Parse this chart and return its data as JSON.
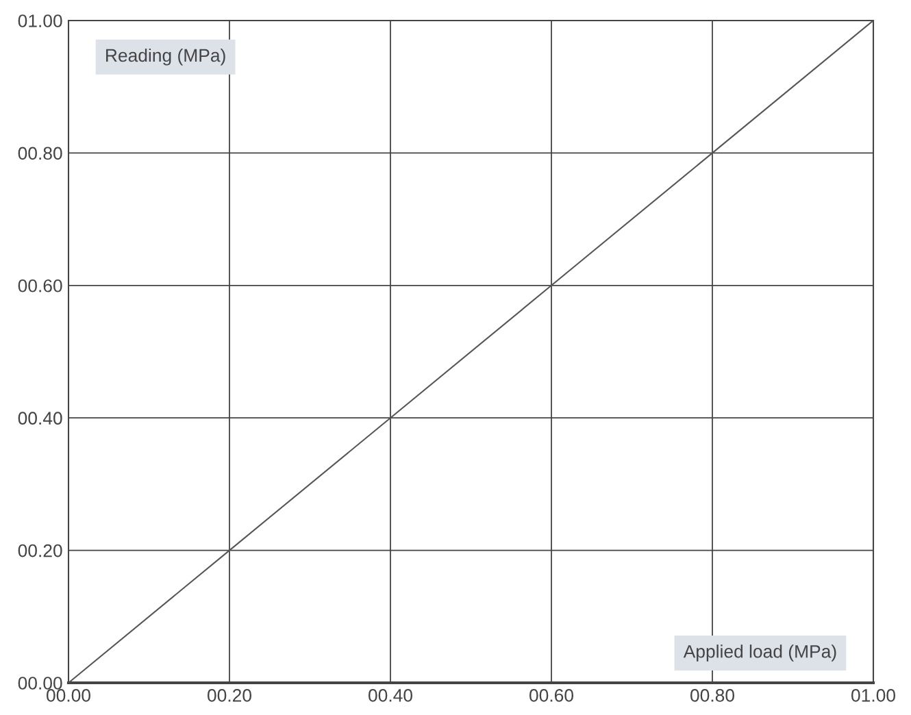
{
  "chart_data": {
    "type": "line",
    "xlabel": "Applied load (MPa)",
    "ylabel": "Reading (MPa)",
    "x": [
      0,
      0.2,
      0.4,
      0.6,
      0.8,
      1.0
    ],
    "series": [
      {
        "color": "#555555",
        "values": [
          0,
          0.2,
          0.4,
          0.6,
          0.8,
          1.0
        ]
      }
    ],
    "xlim": [
      0,
      1
    ],
    "ylim": [
      0,
      1
    ],
    "xticks": [
      {
        "value": 0,
        "label": "00.00"
      },
      {
        "value": 0.2,
        "label": "00.20"
      },
      {
        "value": 0.4,
        "label": "00.40"
      },
      {
        "value": 0.6,
        "label": "00.60"
      },
      {
        "value": 0.8,
        "label": "00.80"
      },
      {
        "value": 1.0,
        "label": "01.00"
      }
    ],
    "yticks": [
      {
        "value": 0,
        "label": "00.00"
      },
      {
        "value": 0.2,
        "label": "00.20"
      },
      {
        "value": 0.4,
        "label": "00.40"
      },
      {
        "value": 0.6,
        "label": "00.60"
      },
      {
        "value": 0.8,
        "label": "00.80"
      },
      {
        "value": 1.0,
        "label": "01.00"
      }
    ],
    "grid": true,
    "marker": "none",
    "line_style": "solid"
  }
}
